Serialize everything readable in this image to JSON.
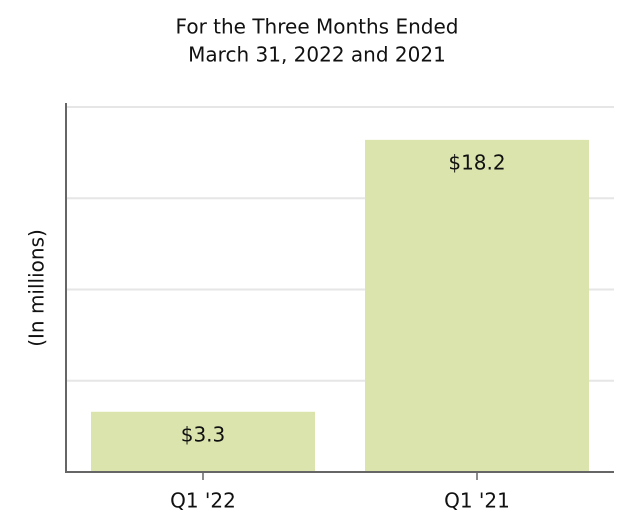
{
  "chart_data": {
    "type": "bar",
    "title": "For the Three Months Ended",
    "subtitle": "March 31, 2022 and 2021",
    "y_label": "(In millions)",
    "categories": [
      "Q1 '22",
      "Q1 '21"
    ],
    "values": [
      3.3,
      18.2
    ],
    "value_labels": [
      "$3.3",
      "$18.2"
    ],
    "color": "#dce4ae",
    "ylim": [
      0,
      20
    ],
    "ygrid": [
      5,
      10,
      15,
      20
    ],
    "grid": true
  }
}
